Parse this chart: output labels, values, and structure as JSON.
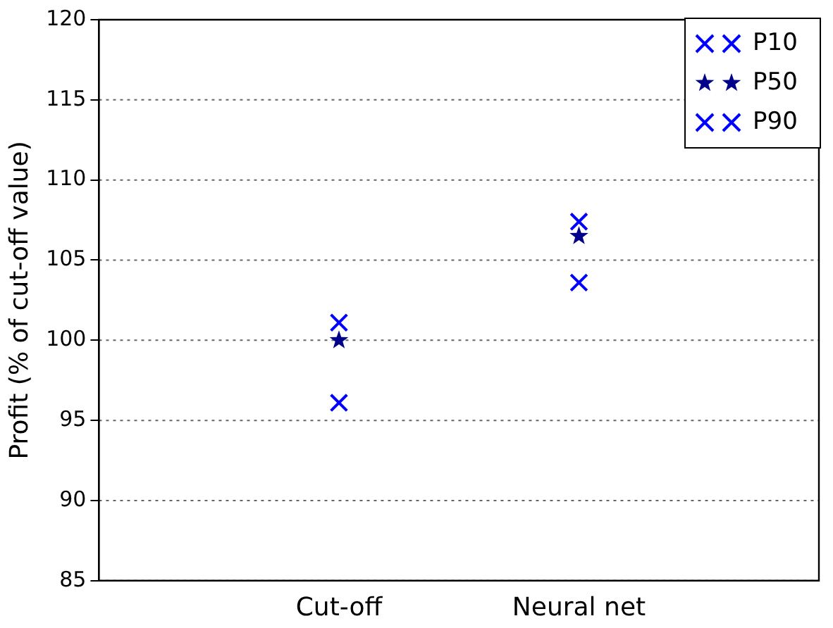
{
  "chart_data": {
    "type": "scatter",
    "ylabel": "Profit (% of cut-off value)",
    "categories": [
      null,
      "Cut-off",
      "Neural net",
      null
    ],
    "ylim": [
      85,
      120
    ],
    "yticks": [
      85,
      90,
      95,
      100,
      105,
      110,
      115,
      120
    ],
    "grid": "y",
    "line_style": "dotted",
    "legend": "top right",
    "series": [
      {
        "name": "P10",
        "color": "#0000ff",
        "marker": "cross",
        "values": [
          null,
          96.1,
          103.6,
          null
        ]
      },
      {
        "name": "P50",
        "color": "#00008b",
        "marker": "star",
        "values": [
          null,
          100.0,
          106.5,
          null
        ]
      },
      {
        "name": "P90",
        "color": "#0000ff",
        "marker": "cross",
        "values": [
          null,
          101.1,
          107.4,
          null
        ]
      }
    ]
  }
}
